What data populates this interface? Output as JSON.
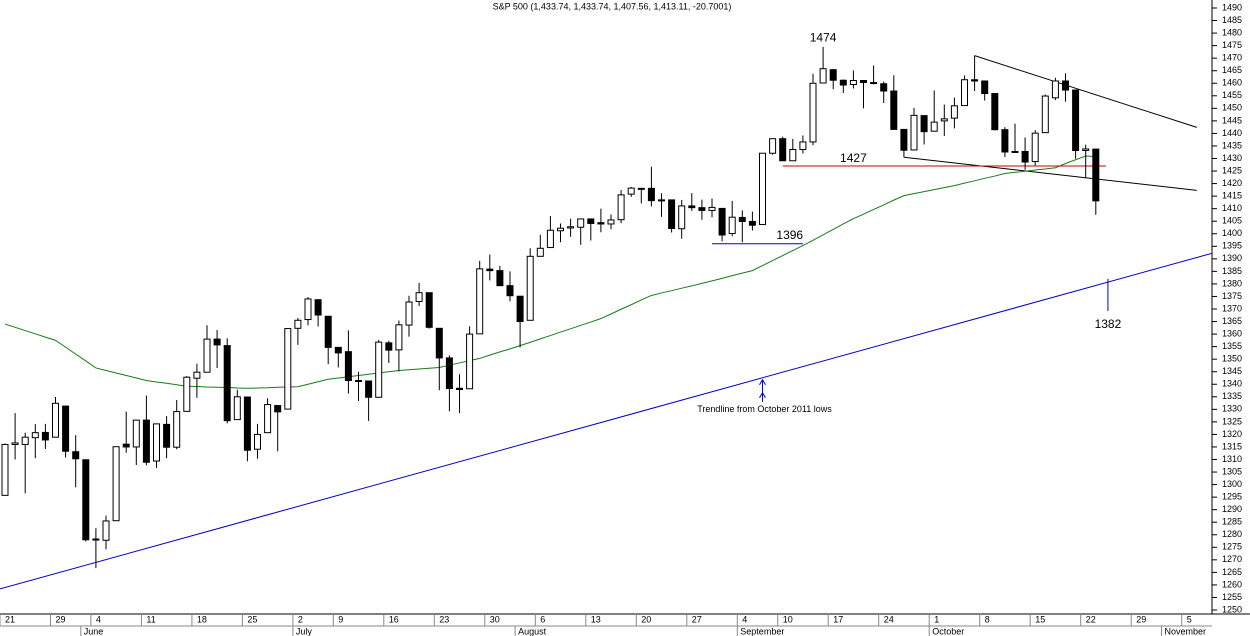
{
  "chart_data": {
    "type": "candlestick",
    "title": "S&P 500 (1,433.74, 1,433.74, 1,407.56, 1,413.11, -20.7001)",
    "categories": [
      "21",
      null,
      null,
      null,
      null,
      "29",
      null,
      null,
      null,
      "4",
      null,
      null,
      null,
      null,
      "11",
      null,
      null,
      null,
      null,
      "18",
      null,
      null,
      null,
      null,
      "25",
      null,
      null,
      null,
      null,
      "2",
      null,
      null,
      null,
      "9",
      null,
      null,
      null,
      null,
      "16",
      null,
      null,
      null,
      null,
      "23",
      null,
      null,
      null,
      null,
      "30",
      null,
      null,
      null,
      null,
      "6",
      null,
      null,
      null,
      null,
      "13",
      null,
      null,
      null,
      null,
      "20",
      null,
      null,
      null,
      null,
      "27",
      null,
      null,
      null,
      null,
      "4",
      null,
      null,
      null,
      "10",
      null,
      null,
      null,
      null,
      "17",
      null,
      null,
      null,
      null,
      "24",
      null,
      null,
      null,
      null,
      "1",
      null,
      null,
      null,
      null,
      "8",
      null,
      null,
      null,
      null,
      "15",
      null,
      null,
      null,
      null,
      "22",
      null,
      null,
      null,
      null,
      "29",
      null,
      null,
      null,
      null,
      "5",
      null,
      null
    ],
    "months": [
      {
        "label": "June",
        "at": 8
      },
      {
        "label": "July",
        "at": 29
      },
      {
        "label": "August",
        "at": 51
      },
      {
        "label": "September",
        "at": 73
      },
      {
        "label": "October",
        "at": 92
      },
      {
        "label": "November",
        "at": 115
      }
    ],
    "open": [
      1295.7,
      1316.0,
      1316.0,
      1318.7,
      1320.8,
      1318.9,
      1331.3,
      1313.1,
      1309.9,
      1278.3,
      1277.8,
      1285.6,
      1316.1,
      1315.0,
      1325.7,
      1309.4,
      1324.0,
      1314.9,
      1329.2,
      1342.4,
      1344.8,
      1358.0,
      1355.4,
      1325.9,
      1334.9,
      1314.1,
      1320.7,
      1331.5,
      1330.1,
      1362.3,
      1365.8,
      1373.7,
      1367.1,
      1354.7,
      1353.0,
      1341.4,
      1341.3,
      1334.8,
      1356.5,
      1353.7,
      1363.6,
      1373.0,
      1376.5,
      1362.3,
      1350.5,
      1338.4,
      1338.2,
      1360.1,
      1385.9,
      1385.3,
      1379.3,
      1375.1,
      1365.5,
      1391.0,
      1394.5,
      1401.2,
      1402.3,
      1402.6,
      1405.9,
      1404.4,
      1403.9,
      1405.6,
      1415.8,
      1417.9,
      1418.1,
      1413.1,
      1413.5,
      1402.0,
      1411.1,
      1410.4,
      1409.3,
      1410.1,
      1400.1,
      1406.5,
      1404.9,
      1403.7,
      1432.1,
      1437.9,
      1429.1,
      1433.6,
      1436.6,
      1460.1,
      1465.4,
      1461.2,
      1459.5,
      1461.1,
      1460.3,
      1459.8,
      1456.9,
      1441.6,
      1433.4,
      1447.1,
      1440.9,
      1445.0,
      1446.1,
      1451.1,
      1461.4,
      1460.9,
      1455.9,
      1441.5,
      1432.8,
      1432.8,
      1428.8,
      1440.3,
      1454.2,
      1460.9,
      1457.3,
      1433.2,
      1433.74,
      null,
      null,
      null,
      null,
      null,
      null,
      null,
      null,
      null,
      null,
      null
    ],
    "high": [
      1316.4,
      1328.5,
      1320.7,
      1324.1,
      1324.2,
      1334.9,
      1331.3,
      1319.7,
      1309.9,
      1282.6,
      1287.6,
      1315.1,
      1329.1,
      1325.8,
      1335.5,
      1324.3,
      1327.3,
      1333.7,
      1343.3,
      1348.2,
      1363.5,
      1361.6,
      1358.3,
      1337.8,
      1334.9,
      1324.2,
      1334.4,
      1331.5,
      1362.2,
      1366.4,
      1374.8,
      1373.9,
      1367.1,
      1354.9,
      1361.5,
      1345.0,
      1341.3,
      1357.7,
      1357.3,
      1365.4,
      1375.3,
      1380.4,
      1376.5,
      1362.3,
      1351.5,
      1344.0,
      1363.1,
      1389.2,
      1391.7,
      1387.2,
      1385.0,
      1375.1,
      1394.2,
      1399.6,
      1407.1,
      1404.1,
      1406.0,
      1406.0,
      1405.9,
      1410.0,
      1407.7,
      1417.4,
      1418.7,
      1418.1,
      1426.7,
      1416.1,
      1413.5,
      1413.5,
      1416.2,
      1413.6,
      1414.0,
      1410.1,
      1413.1,
      1409.3,
      1408.8,
      1432.1,
      1437.9,
      1438.7,
      1437.8,
      1439.2,
      1463.8,
      1474.5,
      1465.6,
      1461.5,
      1465.1,
      1461.2,
      1467.1,
      1460.7,
      1463.2,
      1441.6,
      1450.2,
      1447.1,
      1457.1,
      1451.5,
      1454.3,
      1463.1,
      1471.0,
      1460.9,
      1455.9,
      1442.5,
      1443.9,
      1438.4,
      1441.3,
      1455.5,
      1462.2,
      1464.0,
      1457.3,
      1435.5,
      1433.74,
      null,
      null,
      null,
      null,
      null,
      null,
      null,
      null,
      null,
      null,
      null
    ],
    "low": [
      1295.7,
      1310.0,
      1296.5,
      1310.5,
      1314.2,
      1318.9,
      1310.8,
      1298.9,
      1277.3,
      1266.7,
      1274.2,
      1285.6,
      1312.7,
      1307.8,
      1307.7,
      1306.6,
      1310.5,
      1314.1,
      1329.2,
      1334.6,
      1344.8,
      1346.5,
      1324.4,
      1325.9,
      1309.3,
      1310.3,
      1320.7,
      1313.3,
      1330.1,
      1355.7,
      1363.5,
      1363.0,
      1348.0,
      1346.7,
      1336.3,
      1333.3,
      1325.4,
      1334.8,
      1348.5,
      1345.1,
      1359.0,
      1371.2,
      1362.2,
      1337.6,
      1329.2,
      1328.5,
      1338.2,
      1360.1,
      1381.4,
      1379.2,
      1373.1,
      1354.7,
      1365.5,
      1391.0,
      1394.5,
      1396.6,
      1398.8,
      1395.6,
      1397.3,
      1400.6,
      1401.8,
      1404.2,
      1414.7,
      1412.1,
      1410.9,
      1406.8,
      1400.5,
      1398.0,
      1409.1,
      1405.6,
      1406.6,
      1397.0,
      1399.0,
      1396.6,
      1401.3,
      1403.7,
      1431.5,
      1429.0,
      1429.1,
      1432.0,
      1435.3,
      1460.1,
      1457.6,
      1456.1,
      1457.9,
      1450.0,
      1459.5,
      1452.1,
      1441.6,
      1430.5,
      1433.4,
      1435.6,
      1440.9,
      1439.0,
      1442.0,
      1451.1,
      1456.9,
      1453.1,
      1441.2,
      1430.6,
      1432.8,
      1425.5,
      1427.2,
      1440.3,
      1453.3,
      1452.6,
      1429.9,
      1422.1,
      1407.56,
      null,
      null,
      null,
      null,
      null,
      null,
      null,
      null,
      null,
      null,
      null
    ],
    "close": [
      1316.0,
      1316.6,
      1318.9,
      1320.7,
      1317.8,
      1332.4,
      1313.3,
      1310.3,
      1278.0,
      1278.2,
      1285.5,
      1315.1,
      1315.0,
      1325.7,
      1308.9,
      1324.2,
      1314.9,
      1329.1,
      1342.8,
      1344.8,
      1358.0,
      1355.7,
      1325.5,
      1335.0,
      1313.7,
      1320.0,
      1331.9,
      1329.0,
      1362.2,
      1365.5,
      1374.0,
      1367.6,
      1354.7,
      1352.5,
      1341.5,
      1341.5,
      1334.8,
      1356.8,
      1353.6,
      1363.7,
      1372.8,
      1376.5,
      1362.7,
      1350.5,
      1338.3,
      1337.9,
      1360.0,
      1386.0,
      1385.3,
      1379.3,
      1375.3,
      1365.0,
      1391.0,
      1394.2,
      1401.4,
      1402.2,
      1402.8,
      1405.9,
      1404.1,
      1403.9,
      1405.5,
      1415.5,
      1418.2,
      1418.1,
      1413.2,
      1413.5,
      1402.1,
      1411.1,
      1410.4,
      1409.3,
      1410.5,
      1399.5,
      1406.6,
      1404.9,
      1403.4,
      1432.1,
      1437.9,
      1429.1,
      1433.6,
      1436.6,
      1460.0,
      1465.8,
      1461.2,
      1459.3,
      1461.1,
      1460.3,
      1460.2,
      1456.9,
      1441.6,
      1433.3,
      1447.2,
      1440.7,
      1444.5,
      1445.8,
      1451.0,
      1461.4,
      1460.9,
      1455.9,
      1441.5,
      1432.6,
      1432.8,
      1428.6,
      1440.1,
      1454.9,
      1460.9,
      1457.3,
      1433.2,
      1433.8,
      1413.11,
      null,
      null,
      null,
      null,
      null,
      null,
      null,
      null,
      null,
      null,
      null
    ],
    "up_color": "#ffffff",
    "down_color": "#000000",
    "ma": {
      "color": "#1a7a1a",
      "values": [
        1364.0,
        1362.7,
        1361.4,
        1360.1,
        1358.8,
        1357.5,
        1354.8,
        1352.0,
        1349.3,
        1346.5,
        1345.5,
        1344.5,
        1343.5,
        1342.5,
        1341.5,
        1340.9,
        1340.4,
        1339.8,
        1339.2,
        1339.1,
        1338.9,
        1338.8,
        1338.7,
        1338.5,
        1338.4,
        1338.5,
        1338.6,
        1338.8,
        1338.9,
        1339.0,
        1340.0,
        1341.0,
        1342.0,
        1342.5,
        1343.0,
        1343.5,
        1344.0,
        1344.5,
        1345.0,
        1345.5,
        1345.8,
        1346.1,
        1346.4,
        1346.7,
        1347.6,
        1348.5,
        1349.4,
        1350.3,
        1351.6,
        1352.9,
        1354.1,
        1355.4,
        1356.7,
        1358.1,
        1359.4,
        1360.8,
        1362.1,
        1363.5,
        1364.8,
        1366.2,
        1368.0,
        1369.9,
        1371.7,
        1373.6,
        1375.4,
        1376.4,
        1377.3,
        1378.3,
        1379.2,
        1380.2,
        1381.2,
        1382.2,
        1383.3,
        1384.3,
        1385.3,
        1387.3,
        1389.3,
        1391.3,
        1393.3,
        1395.3,
        1397.4,
        1399.6,
        1401.7,
        1403.9,
        1406.0,
        1407.8,
        1409.7,
        1411.5,
        1413.4,
        1415.2,
        1416.0,
        1416.8,
        1417.6,
        1418.4,
        1419.2,
        1420.2,
        1421.1,
        1422.1,
        1423.0,
        1424.0,
        1424.5,
        1424.9,
        1425.4,
        1425.8,
        1426.3,
        1428.0,
        1429.5,
        1431.0,
        1430.8,
        null,
        null,
        null,
        null,
        null,
        null,
        null,
        null,
        null,
        null,
        null
      ]
    },
    "trendlines": [
      {
        "from": [
          -0.5,
          1258.4
        ],
        "to": [
          119.5,
          1392.2
        ],
        "color": "#0000cc"
      },
      {
        "from": [
          96,
          1471
        ],
        "to": [
          118,
          1442.4
        ],
        "color": "#000000"
      },
      {
        "from": [
          89,
          1430.5
        ],
        "to": [
          118,
          1417.3
        ],
        "color": "#000000"
      }
    ],
    "levels": [
      {
        "label": "1427",
        "value": 1427,
        "from": 77,
        "to": 109,
        "color": "#cc0000"
      },
      {
        "label": "1396",
        "value": 1396,
        "from": 70,
        "to": 79,
        "color": "#0000cc"
      }
    ],
    "annotations": [
      {
        "text": "1474",
        "value": 1474,
        "at": 81
      },
      {
        "text": "1382",
        "value": 1382,
        "at": 109.2
      },
      {
        "text": "Trendline from October 2011 lows",
        "at": 75
      }
    ],
    "ylim": [
      1250,
      1490
    ],
    "yticks": [
      1250,
      1255,
      1260,
      1265,
      1270,
      1275,
      1280,
      1285,
      1290,
      1295,
      1300,
      1305,
      1310,
      1315,
      1320,
      1325,
      1330,
      1335,
      1340,
      1345,
      1350,
      1355,
      1360,
      1365,
      1370,
      1375,
      1380,
      1385,
      1390,
      1395,
      1400,
      1405,
      1410,
      1415,
      1420,
      1425,
      1430,
      1435,
      1440,
      1445,
      1450,
      1455,
      1460,
      1465,
      1470,
      1475,
      1480,
      1485,
      1490
    ]
  }
}
